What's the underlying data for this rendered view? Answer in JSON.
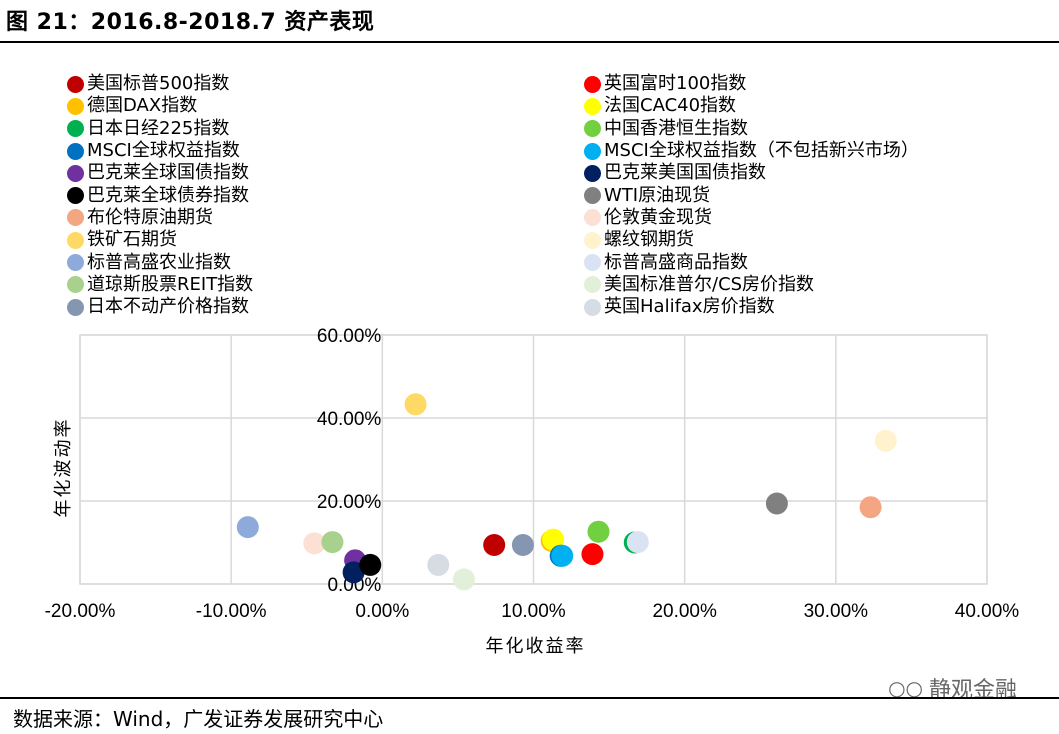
{
  "title": "图 21：2016.8-2018.7 资产表现",
  "source": "数据来源：Wind，广发证券发展研究中心",
  "watermark": "静观金融",
  "watermark_icon": "wechat-icon",
  "chart_data": {
    "type": "scatter",
    "xlabel": "年化收益率",
    "ylabel": "年化波动率",
    "xlim": [
      -0.2,
      0.4
    ],
    "ylim": [
      0,
      0.6
    ],
    "xticks": [
      -0.2,
      -0.1,
      0.0,
      0.1,
      0.2,
      0.3,
      0.4
    ],
    "yticks": [
      0.0,
      0.2,
      0.4,
      0.6
    ],
    "xtick_labels": [
      "-20.00%",
      "-10.00%",
      "0.00%",
      "10.00%",
      "20.00%",
      "30.00%",
      "40.00%"
    ],
    "ytick_labels": [
      "0.00%",
      "20.00%",
      "40.00%",
      "60.00%"
    ],
    "grid": true,
    "legend_position": "top",
    "series": [
      {
        "name": "美国标普500指数",
        "color": "#c00000",
        "x": 0.074,
        "y": 0.094
      },
      {
        "name": "英国富时100指数",
        "color": "#ff0000",
        "x": 0.139,
        "y": 0.072
      },
      {
        "name": "德国DAX指数",
        "color": "#ffc000",
        "x": 0.112,
        "y": 0.104
      },
      {
        "name": "法国CAC40指数",
        "color": "#ffff00",
        "x": 0.113,
        "y": 0.107
      },
      {
        "name": "日本日经225指数",
        "color": "#00b050",
        "x": 0.167,
        "y": 0.1
      },
      {
        "name": "中国香港恒生指数",
        "color": "#70d040",
        "x": 0.143,
        "y": 0.126
      },
      {
        "name": "MSCI全球权益指数",
        "color": "#0070c0",
        "x": 0.118,
        "y": 0.068
      },
      {
        "name": "MSCI全球权益指数（不包括新兴市场）",
        "color": "#00b0f0",
        "x": 0.119,
        "y": 0.068
      },
      {
        "name": "巴克莱全球国债指数",
        "color": "#7030a0",
        "x": -0.018,
        "y": 0.057
      },
      {
        "name": "巴克莱美国国债指数",
        "color": "#002060",
        "x": -0.019,
        "y": 0.028
      },
      {
        "name": "巴克莱全球债券指数",
        "color": "#000000",
        "x": -0.008,
        "y": 0.046
      },
      {
        "name": "WTI原油现货",
        "color": "#808080",
        "x": 0.261,
        "y": 0.194
      },
      {
        "name": "布伦特原油期货",
        "color": "#f4a582",
        "x": 0.323,
        "y": 0.185
      },
      {
        "name": "伦敦黄金现货",
        "color": "#fce0d4",
        "x": -0.045,
        "y": 0.098
      },
      {
        "name": "铁矿石期货",
        "color": "#ffd966",
        "x": 0.022,
        "y": 0.433
      },
      {
        "name": "螺纹钢期货",
        "color": "#fff2cc",
        "x": 0.333,
        "y": 0.345
      },
      {
        "name": "标普高盛农业指数",
        "color": "#8eaadb",
        "x": -0.089,
        "y": 0.137
      },
      {
        "name": "标普高盛商品指数",
        "color": "#dae3f3",
        "x": 0.169,
        "y": 0.101
      },
      {
        "name": "道琼斯股票REIT指数",
        "color": "#a9d18e",
        "x": -0.033,
        "y": 0.101
      },
      {
        "name": "美国标准普尔/CS房价指数",
        "color": "#e2f0d9",
        "x": 0.054,
        "y": 0.011
      },
      {
        "name": "日本不动产价格指数",
        "color": "#8496b0",
        "x": 0.093,
        "y": 0.094
      },
      {
        "name": "英国Halifax房价指数",
        "color": "#d6dce4",
        "x": 0.037,
        "y": 0.046
      }
    ]
  }
}
